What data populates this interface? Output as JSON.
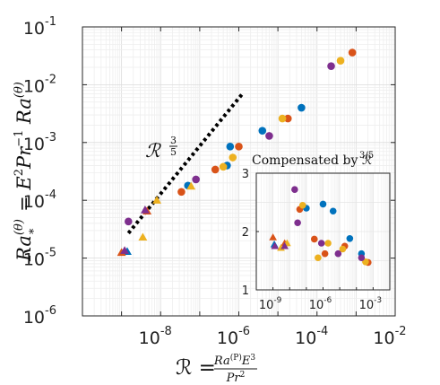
{
  "chart_data": [
    {
      "type": "scatter",
      "title": "",
      "xlabel": "ℛ = Ra^{(P)} E^3 / Pr^2",
      "ylabel": "Ra_*^{(θ)} = E^2 Pr^{-1} Ra^{(θ)}",
      "xscale": "log",
      "yscale": "log",
      "xlim": [
        1e-10,
        0.01
      ],
      "ylim": [
        1e-06,
        0.1
      ],
      "grid": true,
      "x_ticks": [
        {
          "base": "10",
          "exp": "-8",
          "value": 1e-08
        },
        {
          "base": "10",
          "exp": "-6",
          "value": 1e-06
        },
        {
          "base": "10",
          "exp": "-4",
          "value": 0.0001
        },
        {
          "base": "10",
          "exp": "-2",
          "value": 0.01
        }
      ],
      "y_ticks": [
        {
          "base": "10",
          "exp": "-6",
          "value": 1e-06
        },
        {
          "base": "10",
          "exp": "-5",
          "value": 1e-05
        },
        {
          "base": "10",
          "exp": "-4",
          "value": 0.0001
        },
        {
          "base": "10",
          "exp": "-3",
          "value": 0.001
        },
        {
          "base": "10",
          "exp": "-2",
          "value": 0.01
        },
        {
          "base": "10",
          "exp": "-1",
          "value": 0.1
        }
      ],
      "reference_line": {
        "label": "ℛ^{3/5}",
        "slope": 0.6,
        "x": [
          1.5e-09,
          1.2e-06
        ],
        "y": [
          2.7e-05,
          0.0068
        ]
      },
      "series": [
        {
          "color": "#0072BD",
          "points": [
            {
              "x": 1.4e-09,
              "y": 1.3e-05,
              "marker": "triangle"
            },
            {
              "x": 5e-08,
              "y": 0.00018,
              "marker": "circle"
            },
            {
              "x": 5e-07,
              "y": 0.0004,
              "marker": "circle"
            },
            {
              "x": 6e-07,
              "y": 0.00085,
              "marker": "circle"
            },
            {
              "x": 4e-06,
              "y": 0.0016,
              "marker": "circle"
            },
            {
              "x": 4e-05,
              "y": 0.004,
              "marker": "circle"
            }
          ]
        },
        {
          "color": "#D95319",
          "points": [
            {
              "x": 1e-09,
              "y": 1.25e-05,
              "marker": "triangle"
            },
            {
              "x": 4.5e-09,
              "y": 6.5e-05,
              "marker": "triangle"
            },
            {
              "x": 3.4e-08,
              "y": 0.00014,
              "marker": "circle"
            },
            {
              "x": 2.5e-07,
              "y": 0.00034,
              "marker": "circle"
            },
            {
              "x": 1e-06,
              "y": 0.00085,
              "marker": "circle"
            },
            {
              "x": 1.8e-05,
              "y": 0.0026,
              "marker": "circle"
            },
            {
              "x": 0.0008,
              "y": 0.036,
              "marker": "circle"
            }
          ]
        },
        {
          "color": "#EDB120",
          "points": [
            {
              "x": 3.5e-09,
              "y": 2.3e-05,
              "marker": "triangle"
            },
            {
              "x": 8e-09,
              "y": 0.0001,
              "marker": "triangle"
            },
            {
              "x": 6e-08,
              "y": 0.000175,
              "marker": "triangle"
            },
            {
              "x": 4e-07,
              "y": 0.00038,
              "marker": "circle"
            },
            {
              "x": 7e-07,
              "y": 0.00055,
              "marker": "circle"
            },
            {
              "x": 1.3e-05,
              "y": 0.0026,
              "marker": "circle"
            },
            {
              "x": 0.0004,
              "y": 0.026,
              "marker": "circle"
            }
          ]
        },
        {
          "color": "#7E2F8E",
          "points": [
            {
              "x": 1.2e-09,
              "y": 1.35e-05,
              "marker": "triangle"
            },
            {
              "x": 1.5e-09,
              "y": 4.3e-05,
              "marker": "circle"
            },
            {
              "x": 4e-09,
              "y": 6.8e-05,
              "marker": "triangle"
            },
            {
              "x": 8e-08,
              "y": 0.00023,
              "marker": "circle"
            },
            {
              "x": 6e-06,
              "y": 0.0013,
              "marker": "circle"
            },
            {
              "x": 0.00023,
              "y": 0.021,
              "marker": "circle"
            }
          ]
        }
      ]
    },
    {
      "type": "scatter",
      "title": "Compensated by ℛ^{3/5}",
      "xscale": "log",
      "xlim": [
        1e-10,
        0.01
      ],
      "ylim": [
        1,
        3
      ],
      "x_ticks": [
        {
          "base": "10",
          "exp": "-9",
          "value": 1e-09
        },
        {
          "base": "10",
          "exp": "-6",
          "value": 1e-06
        },
        {
          "base": "10",
          "exp": "-3",
          "value": 0.001
        }
      ],
      "y_ticks": [
        {
          "label": "1",
          "value": 1
        },
        {
          "label": "2",
          "value": 2
        },
        {
          "label": "3",
          "value": 3
        }
      ],
      "series": [
        {
          "color": "#0072BD",
          "points": [
            {
              "x": 1.2e-09,
              "y": 1.78,
              "marker": "triangle"
            },
            {
              "x": 1e-07,
              "y": 2.4,
              "marker": "circle"
            },
            {
              "x": 1e-06,
              "y": 2.47,
              "marker": "circle"
            },
            {
              "x": 4e-06,
              "y": 2.35,
              "marker": "circle"
            },
            {
              "x": 4e-05,
              "y": 1.88,
              "marker": "circle"
            },
            {
              "x": 0.0002,
              "y": 1.62,
              "marker": "circle"
            }
          ]
        },
        {
          "color": "#D95319",
          "points": [
            {
              "x": 1e-09,
              "y": 1.9,
              "marker": "triangle"
            },
            {
              "x": 5e-09,
              "y": 1.8,
              "marker": "triangle"
            },
            {
              "x": 4e-08,
              "y": 2.38,
              "marker": "circle"
            },
            {
              "x": 3e-07,
              "y": 1.87,
              "marker": "circle"
            },
            {
              "x": 1.3e-06,
              "y": 1.62,
              "marker": "circle"
            },
            {
              "x": 2e-05,
              "y": 1.75,
              "marker": "circle"
            },
            {
              "x": 0.0005,
              "y": 1.47,
              "marker": "circle"
            }
          ]
        },
        {
          "color": "#EDB120",
          "points": [
            {
              "x": 3e-09,
              "y": 1.72,
              "marker": "triangle"
            },
            {
              "x": 7e-09,
              "y": 1.8,
              "marker": "triangle"
            },
            {
              "x": 6e-08,
              "y": 2.45,
              "marker": "circle"
            },
            {
              "x": 5e-07,
              "y": 1.55,
              "marker": "circle"
            },
            {
              "x": 2e-06,
              "y": 1.8,
              "marker": "circle"
            },
            {
              "x": 1.5e-05,
              "y": 1.7,
              "marker": "circle"
            },
            {
              "x": 0.00035,
              "y": 1.48,
              "marker": "circle"
            }
          ]
        },
        {
          "color": "#7E2F8E",
          "points": [
            {
              "x": 1.3e-09,
              "y": 1.75,
              "marker": "triangle"
            },
            {
              "x": 2e-08,
              "y": 2.72,
              "marker": "circle"
            },
            {
              "x": 3e-08,
              "y": 2.15,
              "marker": "circle"
            },
            {
              "x": 5e-09,
              "y": 1.75,
              "marker": "triangle"
            },
            {
              "x": 8e-07,
              "y": 1.8,
              "marker": "circle"
            },
            {
              "x": 8e-06,
              "y": 1.62,
              "marker": "circle"
            },
            {
              "x": 0.0002,
              "y": 1.55,
              "marker": "circle"
            }
          ]
        }
      ]
    }
  ]
}
